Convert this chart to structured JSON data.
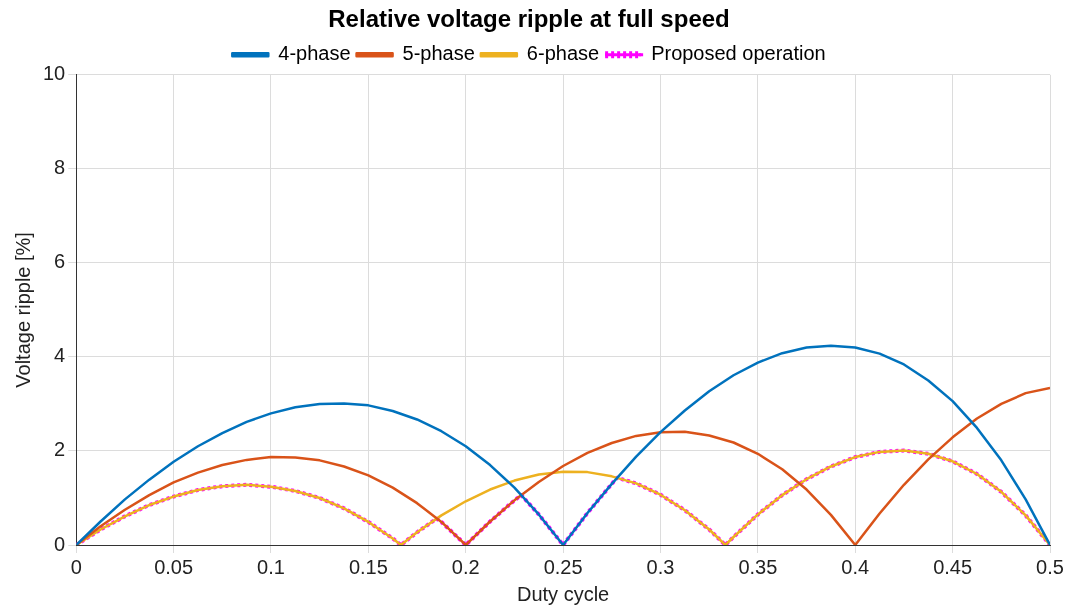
{
  "chart_data": {
    "type": "line",
    "title": "Relative voltage ripple at full speed",
    "xlabel": "Duty cycle",
    "ylabel": "Voltage ripple [%]",
    "xlim": [
      0,
      0.5
    ],
    "ylim": [
      0,
      10
    ],
    "xticks": [
      0,
      0.05,
      0.1,
      0.15,
      0.2,
      0.25,
      0.3,
      0.35,
      0.4,
      0.45,
      0.5
    ],
    "yticks": [
      0,
      2,
      4,
      6,
      8,
      10
    ],
    "grid": true,
    "legend": "top",
    "marker": "none",
    "line_style": "solid",
    "series": [
      {
        "name": "4-phase",
        "color": "#0072bd",
        "x": [
          0,
          0.0125,
          0.025,
          0.0375,
          0.05,
          0.0625,
          0.075,
          0.0875,
          0.1,
          0.1125,
          0.125,
          0.1375,
          0.15,
          0.1625,
          0.175,
          0.1875,
          0.2,
          0.2125,
          0.225,
          0.2375,
          0.25,
          0.2625,
          0.275,
          0.2875,
          0.3,
          0.3125,
          0.325,
          0.3375,
          0.35,
          0.3625,
          0.375,
          0.3875,
          0.4,
          0.4125,
          0.425,
          0.4375,
          0.45,
          0.4625,
          0.475,
          0.4875,
          0.5
        ],
        "values": [
          0,
          0.5,
          0.97,
          1.39,
          1.77,
          2.1,
          2.38,
          2.62,
          2.8,
          2.93,
          3.0,
          3.01,
          2.97,
          2.85,
          2.67,
          2.42,
          2.1,
          1.7,
          1.22,
          0.65,
          0,
          0.68,
          1.3,
          1.88,
          2.4,
          2.86,
          3.27,
          3.61,
          3.88,
          4.08,
          4.2,
          4.24,
          4.2,
          4.07,
          3.84,
          3.5,
          3.06,
          2.49,
          1.8,
          0.97,
          0
        ]
      },
      {
        "name": "5-phase",
        "color": "#d95319",
        "x": [
          0,
          0.0125,
          0.025,
          0.0375,
          0.05,
          0.0625,
          0.075,
          0.0875,
          0.1,
          0.1125,
          0.125,
          0.1375,
          0.15,
          0.1625,
          0.175,
          0.1875,
          0.2,
          0.2125,
          0.225,
          0.2375,
          0.25,
          0.2625,
          0.275,
          0.2875,
          0.3,
          0.3125,
          0.325,
          0.3375,
          0.35,
          0.3625,
          0.375,
          0.3875,
          0.4,
          0.4125,
          0.425,
          0.4375,
          0.45,
          0.4625,
          0.475,
          0.4875,
          0.5
        ],
        "values": [
          0,
          0.4,
          0.75,
          1.06,
          1.33,
          1.54,
          1.7,
          1.81,
          1.87,
          1.86,
          1.8,
          1.67,
          1.48,
          1.22,
          0.89,
          0.49,
          0,
          0.5,
          0.95,
          1.34,
          1.68,
          1.96,
          2.17,
          2.32,
          2.4,
          2.41,
          2.33,
          2.18,
          1.94,
          1.61,
          1.18,
          0.64,
          0,
          0.67,
          1.28,
          1.82,
          2.29,
          2.69,
          3.0,
          3.23,
          3.34
        ]
      },
      {
        "name": "6-phase",
        "color": "#edb120",
        "x": [
          0,
          0.0125,
          0.025,
          0.0375,
          0.05,
          0.0625,
          0.075,
          0.0875,
          0.1,
          0.1125,
          0.125,
          0.1375,
          0.15,
          0.1625,
          0.1667,
          0.175,
          0.1875,
          0.2,
          0.2125,
          0.225,
          0.2375,
          0.25,
          0.2625,
          0.275,
          0.2875,
          0.3,
          0.3125,
          0.325,
          0.3333,
          0.3375,
          0.35,
          0.3625,
          0.375,
          0.3875,
          0.4,
          0.4125,
          0.425,
          0.4375,
          0.45,
          0.4625,
          0.475,
          0.4875,
          0.5
        ],
        "values": [
          0,
          0.33,
          0.61,
          0.85,
          1.03,
          1.17,
          1.25,
          1.28,
          1.24,
          1.15,
          1.0,
          0.78,
          0.49,
          0.14,
          0,
          0.27,
          0.63,
          0.93,
          1.18,
          1.37,
          1.5,
          1.56,
          1.55,
          1.46,
          1.31,
          1.07,
          0.74,
          0.33,
          0,
          0.17,
          0.65,
          1.06,
          1.4,
          1.67,
          1.87,
          1.98,
          2.01,
          1.94,
          1.78,
          1.51,
          1.13,
          0.63,
          0
        ]
      },
      {
        "name": "Proposed operation",
        "color": "#ff00ff",
        "line_style": "dotted",
        "x": [
          0,
          0.0125,
          0.025,
          0.0375,
          0.05,
          0.0625,
          0.075,
          0.0875,
          0.1,
          0.1125,
          0.125,
          0.1375,
          0.15,
          0.1625,
          0.1667,
          0.175,
          0.185,
          0.1875,
          0.2,
          0.2125,
          0.225,
          0.2285,
          0.2375,
          0.25,
          0.2625,
          0.275,
          0.2777,
          0.2875,
          0.3,
          0.3125,
          0.325,
          0.3333,
          0.3375,
          0.35,
          0.3625,
          0.375,
          0.3875,
          0.4,
          0.4125,
          0.425,
          0.4375,
          0.45,
          0.4625,
          0.475,
          0.4875,
          0.5
        ],
        "values": [
          0,
          0.33,
          0.61,
          0.85,
          1.03,
          1.17,
          1.25,
          1.28,
          1.24,
          1.15,
          1.0,
          0.78,
          0.49,
          0.14,
          0,
          0.27,
          0.56,
          0.49,
          0,
          0.5,
          0.95,
          1.06,
          0.65,
          0,
          0.68,
          1.3,
          1.43,
          1.31,
          1.07,
          0.74,
          0.33,
          0,
          0.17,
          0.65,
          1.06,
          1.4,
          1.67,
          1.87,
          1.98,
          2.01,
          1.94,
          1.78,
          1.51,
          1.13,
          0.63,
          0
        ]
      }
    ]
  }
}
